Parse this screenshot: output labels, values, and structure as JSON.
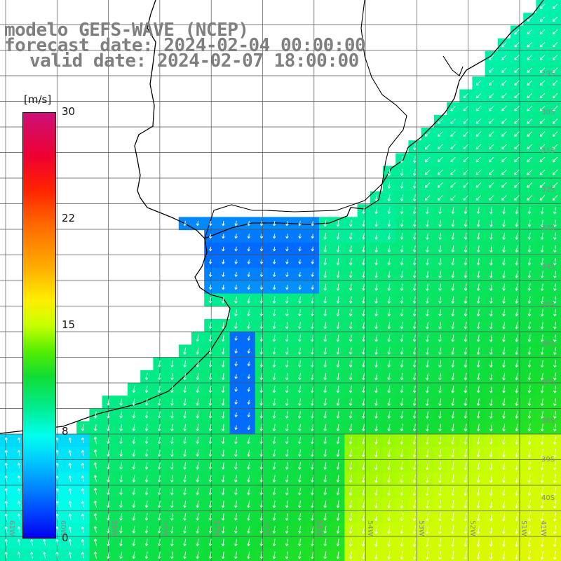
{
  "title": {
    "line1": "modelo GEFS-WAVE (NCEP)",
    "line2": "forecast date: 2024-02-04 00:00:00",
    "line3": "valid date: 2024-02-07 18:00:00"
  },
  "colorbar": {
    "unit": "[m/s]",
    "ticks": [
      "30",
      "22",
      "15",
      "8",
      "0"
    ],
    "tick_values": [
      30,
      22,
      15,
      8,
      0
    ],
    "min": 0,
    "max": 30
  },
  "longitude_labels": [
    "61W",
    "60W",
    "59W",
    "58W",
    "57W",
    "56W",
    "55W",
    "54W",
    "53W",
    "52W",
    "51W",
    "41W"
  ],
  "latitude_labels": [
    "29S",
    "30S",
    "31S",
    "32S",
    "33S",
    "34S",
    "35S",
    "36S",
    "37S",
    "38S",
    "39S",
    "40S"
  ],
  "map_colors": {
    "land": "#ffffff",
    "coast": "#000000",
    "grid": "#555555",
    "arrows": "#ffffff"
  },
  "legend_placement": "left"
}
